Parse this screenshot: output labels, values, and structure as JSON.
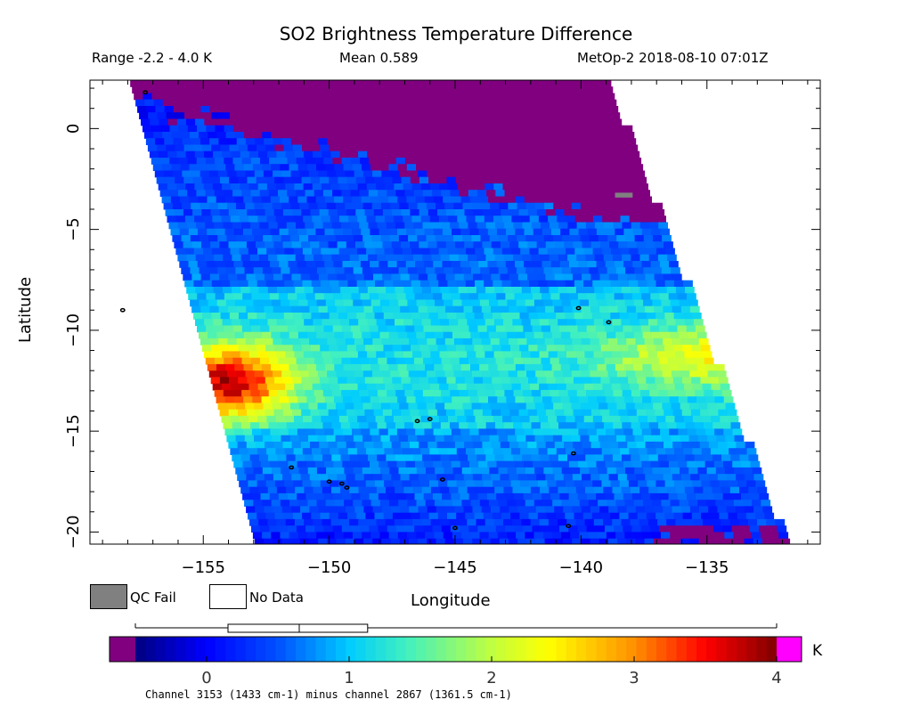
{
  "header": {
    "title": "SO2 Brightness Temperature Difference",
    "range_text": "Range -2.2 - 4.0 K",
    "mean_text": "Mean 0.589",
    "satellite_text": "MetOp-2 2018-08-10 07:01Z"
  },
  "legend": {
    "qc_fail_label": "QC Fail",
    "no_data_label": "No Data",
    "qc_fail_color": "#808080",
    "no_data_color": "#ffffff"
  },
  "colorbar": {
    "unit": "K",
    "ticks": [
      "0",
      "1",
      "2",
      "3",
      "4"
    ],
    "tick_values": [
      0,
      1,
      2,
      3,
      4
    ],
    "range": [
      -0.5,
      4.2
    ],
    "under_color": "#800080",
    "over_color": "#ff00ff",
    "footnote": "Channel 3153 (1433 cm-1) minus channel 2867 (1361.5 cm-1)",
    "boxplot": {
      "whisker_low": -0.5,
      "q1": 0.15,
      "median": 0.65,
      "q3": 1.13,
      "whisker_high": 4.0
    }
  },
  "chart_data": {
    "type": "heatmap",
    "title": "SO2 Brightness Temperature Difference",
    "xlabel": "Longitude",
    "ylabel": "Latitude",
    "xlim": [
      -159.5,
      -130.5
    ],
    "ylim": [
      -20.6,
      2.4
    ],
    "xticks": [
      -155,
      -150,
      -145,
      -140,
      -135
    ],
    "xtick_labels": [
      "−155",
      "−150",
      "−145",
      "−140",
      "−135"
    ],
    "yticks": [
      0,
      -5,
      -10,
      -15,
      -20
    ],
    "ytick_labels": [
      "0",
      "−5",
      "−10",
      "−15",
      "−20"
    ],
    "swath": {
      "top_lat": 2.4,
      "bottom_lat": -20.6,
      "west_lon_top": -157.9,
      "west_lon_bottom": -152.9,
      "east_lon_top": -139.0,
      "east_lon_bottom": -131.9
    },
    "field_regions": [
      {
        "name": "northern purple region",
        "value": -0.8,
        "lat_from": 2.4,
        "lat_to": -4.0
      },
      {
        "name": "blue band",
        "value": 0.3,
        "lat_from": -1.0,
        "lat_to": -8.0
      },
      {
        "name": "cyan band",
        "value": 1.0,
        "lat_from": -8.0,
        "lat_to": -15.0
      },
      {
        "name": "western hotspot",
        "value": 3.5,
        "lat": -12.6,
        "lon": -154.0
      },
      {
        "name": "eastern yellow band",
        "value": 2.2,
        "lat": -11.3,
        "lon": -134.5
      },
      {
        "name": "southern blue band",
        "value": 0.4,
        "lat_from": -15.0,
        "lat_to": -20.6
      }
    ],
    "qc_fail_pixels": [
      {
        "lon": -138.3,
        "lat": -3.3
      }
    ],
    "islands": [
      {
        "lon": -157.3,
        "lat": 1.8
      },
      {
        "lon": -158.2,
        "lat": -9.0
      },
      {
        "lon": -140.1,
        "lat": -8.9
      },
      {
        "lon": -138.9,
        "lat": -9.6
      },
      {
        "lon": -146.5,
        "lat": -14.5
      },
      {
        "lon": -146.0,
        "lat": -14.4
      },
      {
        "lon": -140.3,
        "lat": -16.1
      },
      {
        "lon": -151.5,
        "lat": -16.8
      },
      {
        "lon": -145.5,
        "lat": -17.4
      },
      {
        "lon": -150.0,
        "lat": -17.5
      },
      {
        "lon": -149.5,
        "lat": -17.6
      },
      {
        "lon": -149.3,
        "lat": -17.8
      },
      {
        "lon": -145.0,
        "lat": -19.8
      },
      {
        "lon": -140.5,
        "lat": -19.7
      }
    ]
  }
}
